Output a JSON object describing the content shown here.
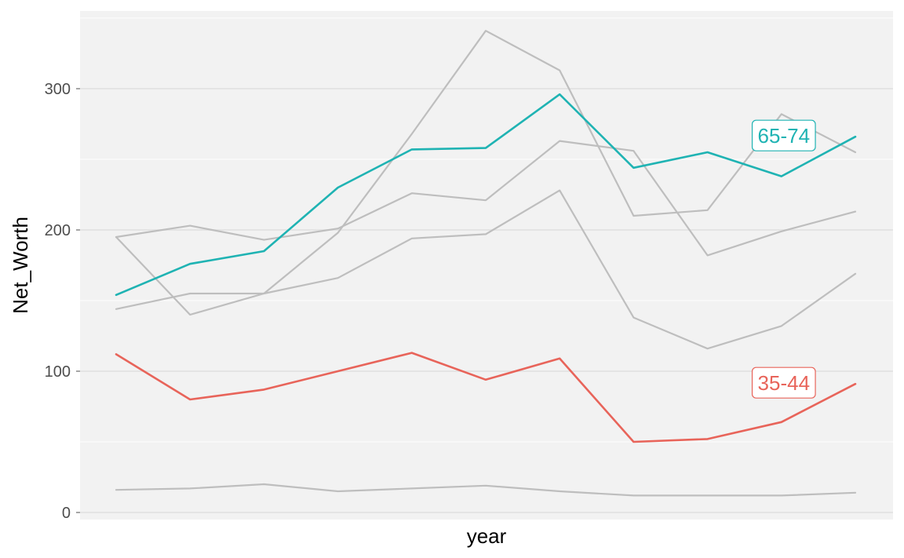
{
  "chart_data": {
    "type": "line",
    "title": "",
    "xlabel": "year",
    "ylabel": "Net_Worth",
    "ylim": [
      -5,
      355
    ],
    "y_ticks": [
      0,
      100,
      200,
      300
    ],
    "x_tick_labels_shown": false,
    "grid": true,
    "legend": "none",
    "x": [
      1,
      2,
      3,
      4,
      5,
      6,
      7,
      8,
      9,
      10,
      11
    ],
    "series": [
      {
        "name": "",
        "color": "#bebebe",
        "values": [
          16,
          17,
          20,
          15,
          17,
          19,
          15,
          12,
          12,
          12,
          14
        ]
      },
      {
        "name": "",
        "color": "#bebebe",
        "values": [
          195,
          140,
          155,
          198,
          268,
          341,
          313,
          210,
          214,
          282,
          255
        ]
      },
      {
        "name": "",
        "color": "#bebebe",
        "values": [
          195,
          203,
          193,
          201,
          226,
          221,
          263,
          256,
          182,
          199,
          213
        ]
      },
      {
        "name": "",
        "color": "#bebebe",
        "values": [
          144,
          155,
          155,
          166,
          194,
          197,
          228,
          138,
          116,
          132,
          169
        ]
      },
      {
        "name": "35-44",
        "color": "#e8645a",
        "values": [
          112,
          80,
          87,
          100,
          113,
          94,
          109,
          50,
          52,
          64,
          91
        ],
        "highlight": true
      },
      {
        "name": "65-74",
        "color": "#1fb3b3",
        "values": [
          154,
          176,
          185,
          230,
          257,
          258,
          296,
          244,
          255,
          238,
          266
        ],
        "highlight": true
      }
    ]
  }
}
